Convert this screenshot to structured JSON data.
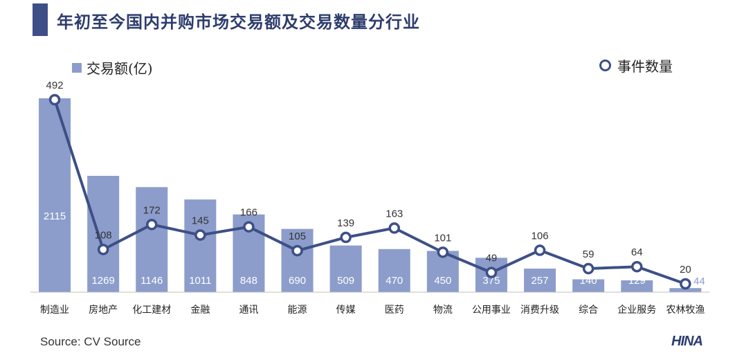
{
  "title": "年初至今国内并购市场交易额及交易数量分行业",
  "legend": {
    "bar_label": "交易额(亿)",
    "line_label": "事件数量"
  },
  "source": "Source: CV Source",
  "logo": "HINA",
  "colors": {
    "bar": "#8c9dcb",
    "line": "#3d4f86",
    "accent": "#3d4f86"
  },
  "chart_data": {
    "type": "bar",
    "categories": [
      "制造业",
      "房地产",
      "化工建材",
      "金融",
      "通讯",
      "能源",
      "传媒",
      "医药",
      "物流",
      "公用事业",
      "消费升级",
      "综合",
      "企业服务",
      "农林牧渔"
    ],
    "series": [
      {
        "name": "交易额(亿)",
        "type": "bar",
        "values": [
          2115,
          1269,
          1146,
          1011,
          848,
          690,
          509,
          470,
          450,
          375,
          257,
          140,
          129,
          44
        ]
      },
      {
        "name": "事件数量",
        "type": "line",
        "values": [
          492,
          108,
          172,
          145,
          166,
          105,
          139,
          163,
          101,
          49,
          106,
          59,
          64,
          20
        ]
      }
    ],
    "legend": "top",
    "grid": false
  }
}
